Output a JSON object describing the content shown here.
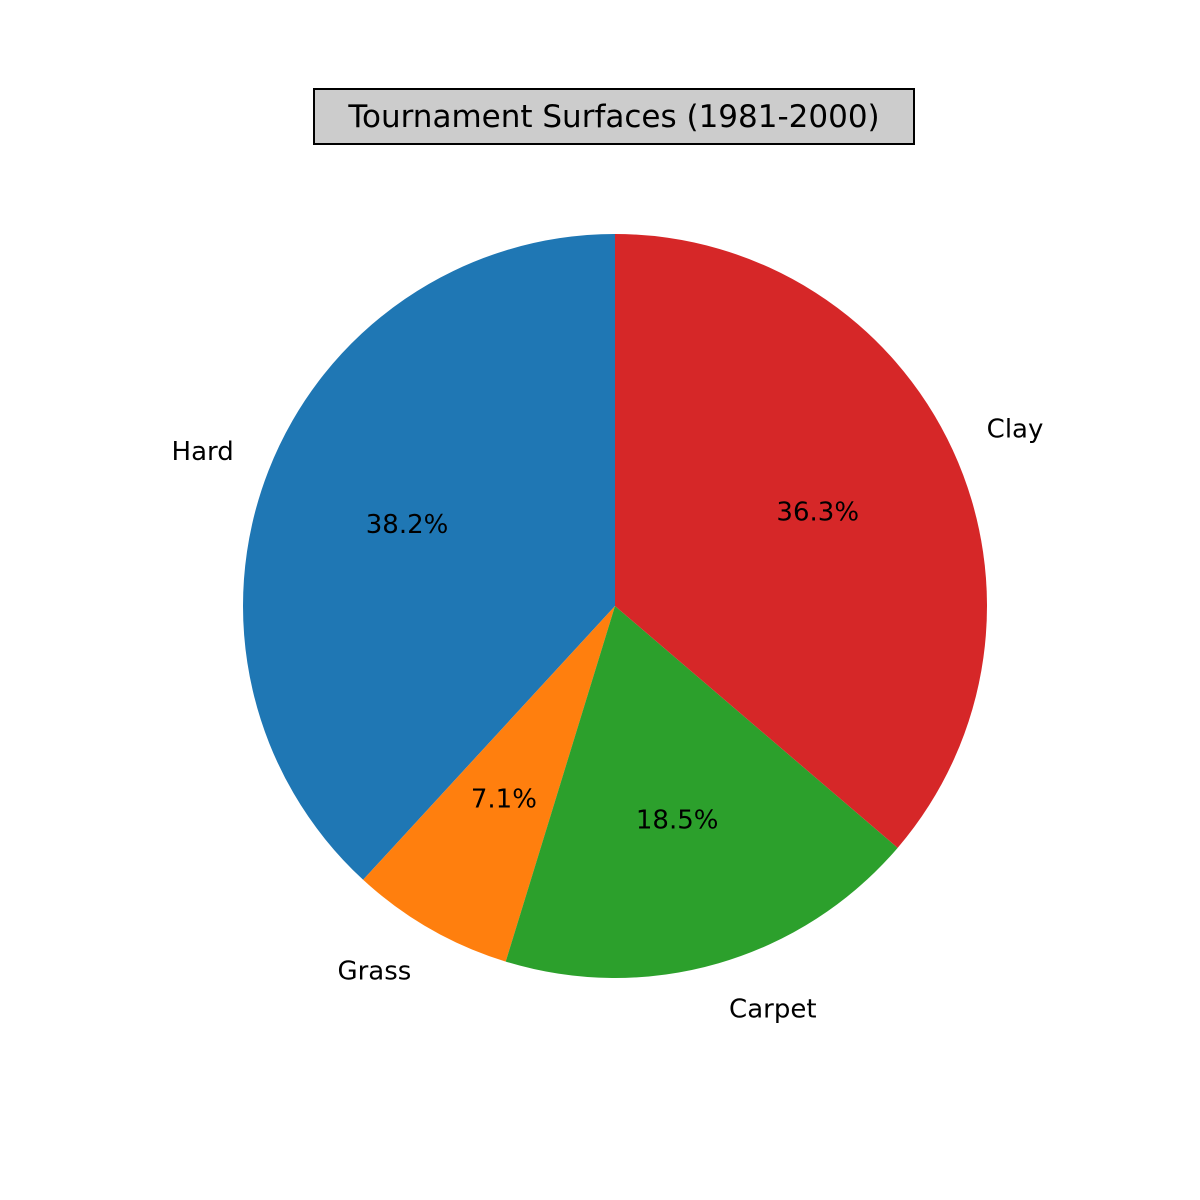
{
  "chart_data": {
    "type": "pie",
    "title": "Tournament Surfaces (1981-2000)",
    "categories": [
      "Hard",
      "Grass",
      "Carpet",
      "Clay"
    ],
    "values": [
      38.2,
      7.1,
      18.5,
      36.3
    ],
    "value_labels": [
      "38.2%",
      "7.1%",
      "18.5%",
      "36.3%"
    ],
    "colors": [
      "#1f77b4",
      "#ff7f0e",
      "#2ca02c",
      "#d62728"
    ],
    "start_angle_deg": 90,
    "direction": "counterclockwise",
    "legend": "none"
  }
}
